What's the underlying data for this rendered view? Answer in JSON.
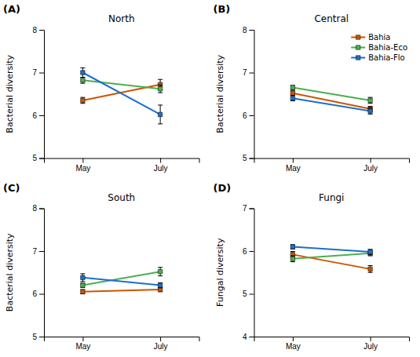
{
  "chart_data": [
    {
      "type": "line",
      "title": "North",
      "annotations": [
        "(A)"
      ],
      "ylabel": "Bacterial diversity",
      "categories": [
        "May",
        "July"
      ],
      "marker": "square",
      "ylim": [
        5,
        8
      ],
      "yticks": [
        5,
        6,
        7,
        8
      ],
      "series": [
        {
          "name": "Bahia",
          "color": "#cc5500",
          "values": [
            6.35,
            6.72
          ],
          "errors": [
            0.07,
            0.12
          ]
        },
        {
          "name": "Bahia-Eco",
          "color": "#4caf50",
          "values": [
            6.82,
            6.62
          ],
          "errors": [
            0.07,
            0.09
          ]
        },
        {
          "name": "Bahia-Flo",
          "color": "#1e6fcc",
          "values": [
            7.0,
            6.02
          ],
          "errors": [
            0.11,
            0.22
          ]
        }
      ]
    },
    {
      "type": "line",
      "title": "Central",
      "annotations": [
        "(B)"
      ],
      "ylabel": "Bacterial diversity",
      "categories": [
        "May",
        "July"
      ],
      "marker": "square",
      "legend": "upper right",
      "ylim": [
        5,
        8
      ],
      "yticks": [
        5,
        6,
        7,
        8
      ],
      "series": [
        {
          "name": "Bahia",
          "color": "#cc5500",
          "values": [
            6.52,
            6.15
          ],
          "errors": [
            0.05,
            0.06
          ]
        },
        {
          "name": "Bahia-Eco",
          "color": "#4caf50",
          "values": [
            6.65,
            6.35
          ],
          "errors": [
            0.05,
            0.07
          ]
        },
        {
          "name": "Bahia-Flo",
          "color": "#1e6fcc",
          "values": [
            6.4,
            6.1
          ],
          "errors": [
            0.06,
            0.07
          ]
        }
      ]
    },
    {
      "type": "line",
      "title": "South",
      "annotations": [
        "(C)"
      ],
      "ylabel": "Bacterial diversity",
      "categories": [
        "May",
        "July"
      ],
      "marker": "square",
      "ylim": [
        5,
        8
      ],
      "yticks": [
        5,
        6,
        7,
        8
      ],
      "series": [
        {
          "name": "Bahia",
          "color": "#cc5500",
          "values": [
            6.05,
            6.1
          ],
          "errors": [
            0.05,
            0.05
          ]
        },
        {
          "name": "Bahia-Eco",
          "color": "#4caf50",
          "values": [
            6.2,
            6.52
          ],
          "errors": [
            0.05,
            0.1
          ]
        },
        {
          "name": "Bahia-Flo",
          "color": "#1e6fcc",
          "values": [
            6.38,
            6.2
          ],
          "errors": [
            0.09,
            0.06
          ]
        }
      ]
    },
    {
      "type": "line",
      "title": "Fungi",
      "annotations": [
        "(D)"
      ],
      "ylabel": "Fungal diversity",
      "categories": [
        "May",
        "July"
      ],
      "marker": "square",
      "ylim": [
        4,
        7
      ],
      "yticks": [
        4,
        5,
        6,
        7
      ],
      "series": [
        {
          "name": "Bahia",
          "color": "#cc5500",
          "values": [
            5.92,
            5.58
          ],
          "errors": [
            0.07,
            0.08
          ]
        },
        {
          "name": "Bahia-Eco",
          "color": "#4caf50",
          "values": [
            5.82,
            5.95
          ],
          "errors": [
            0.07,
            0.06
          ]
        },
        {
          "name": "Bahia-Flo",
          "color": "#1e6fcc",
          "values": [
            6.1,
            5.98
          ],
          "errors": [
            0.05,
            0.06
          ]
        }
      ]
    }
  ]
}
